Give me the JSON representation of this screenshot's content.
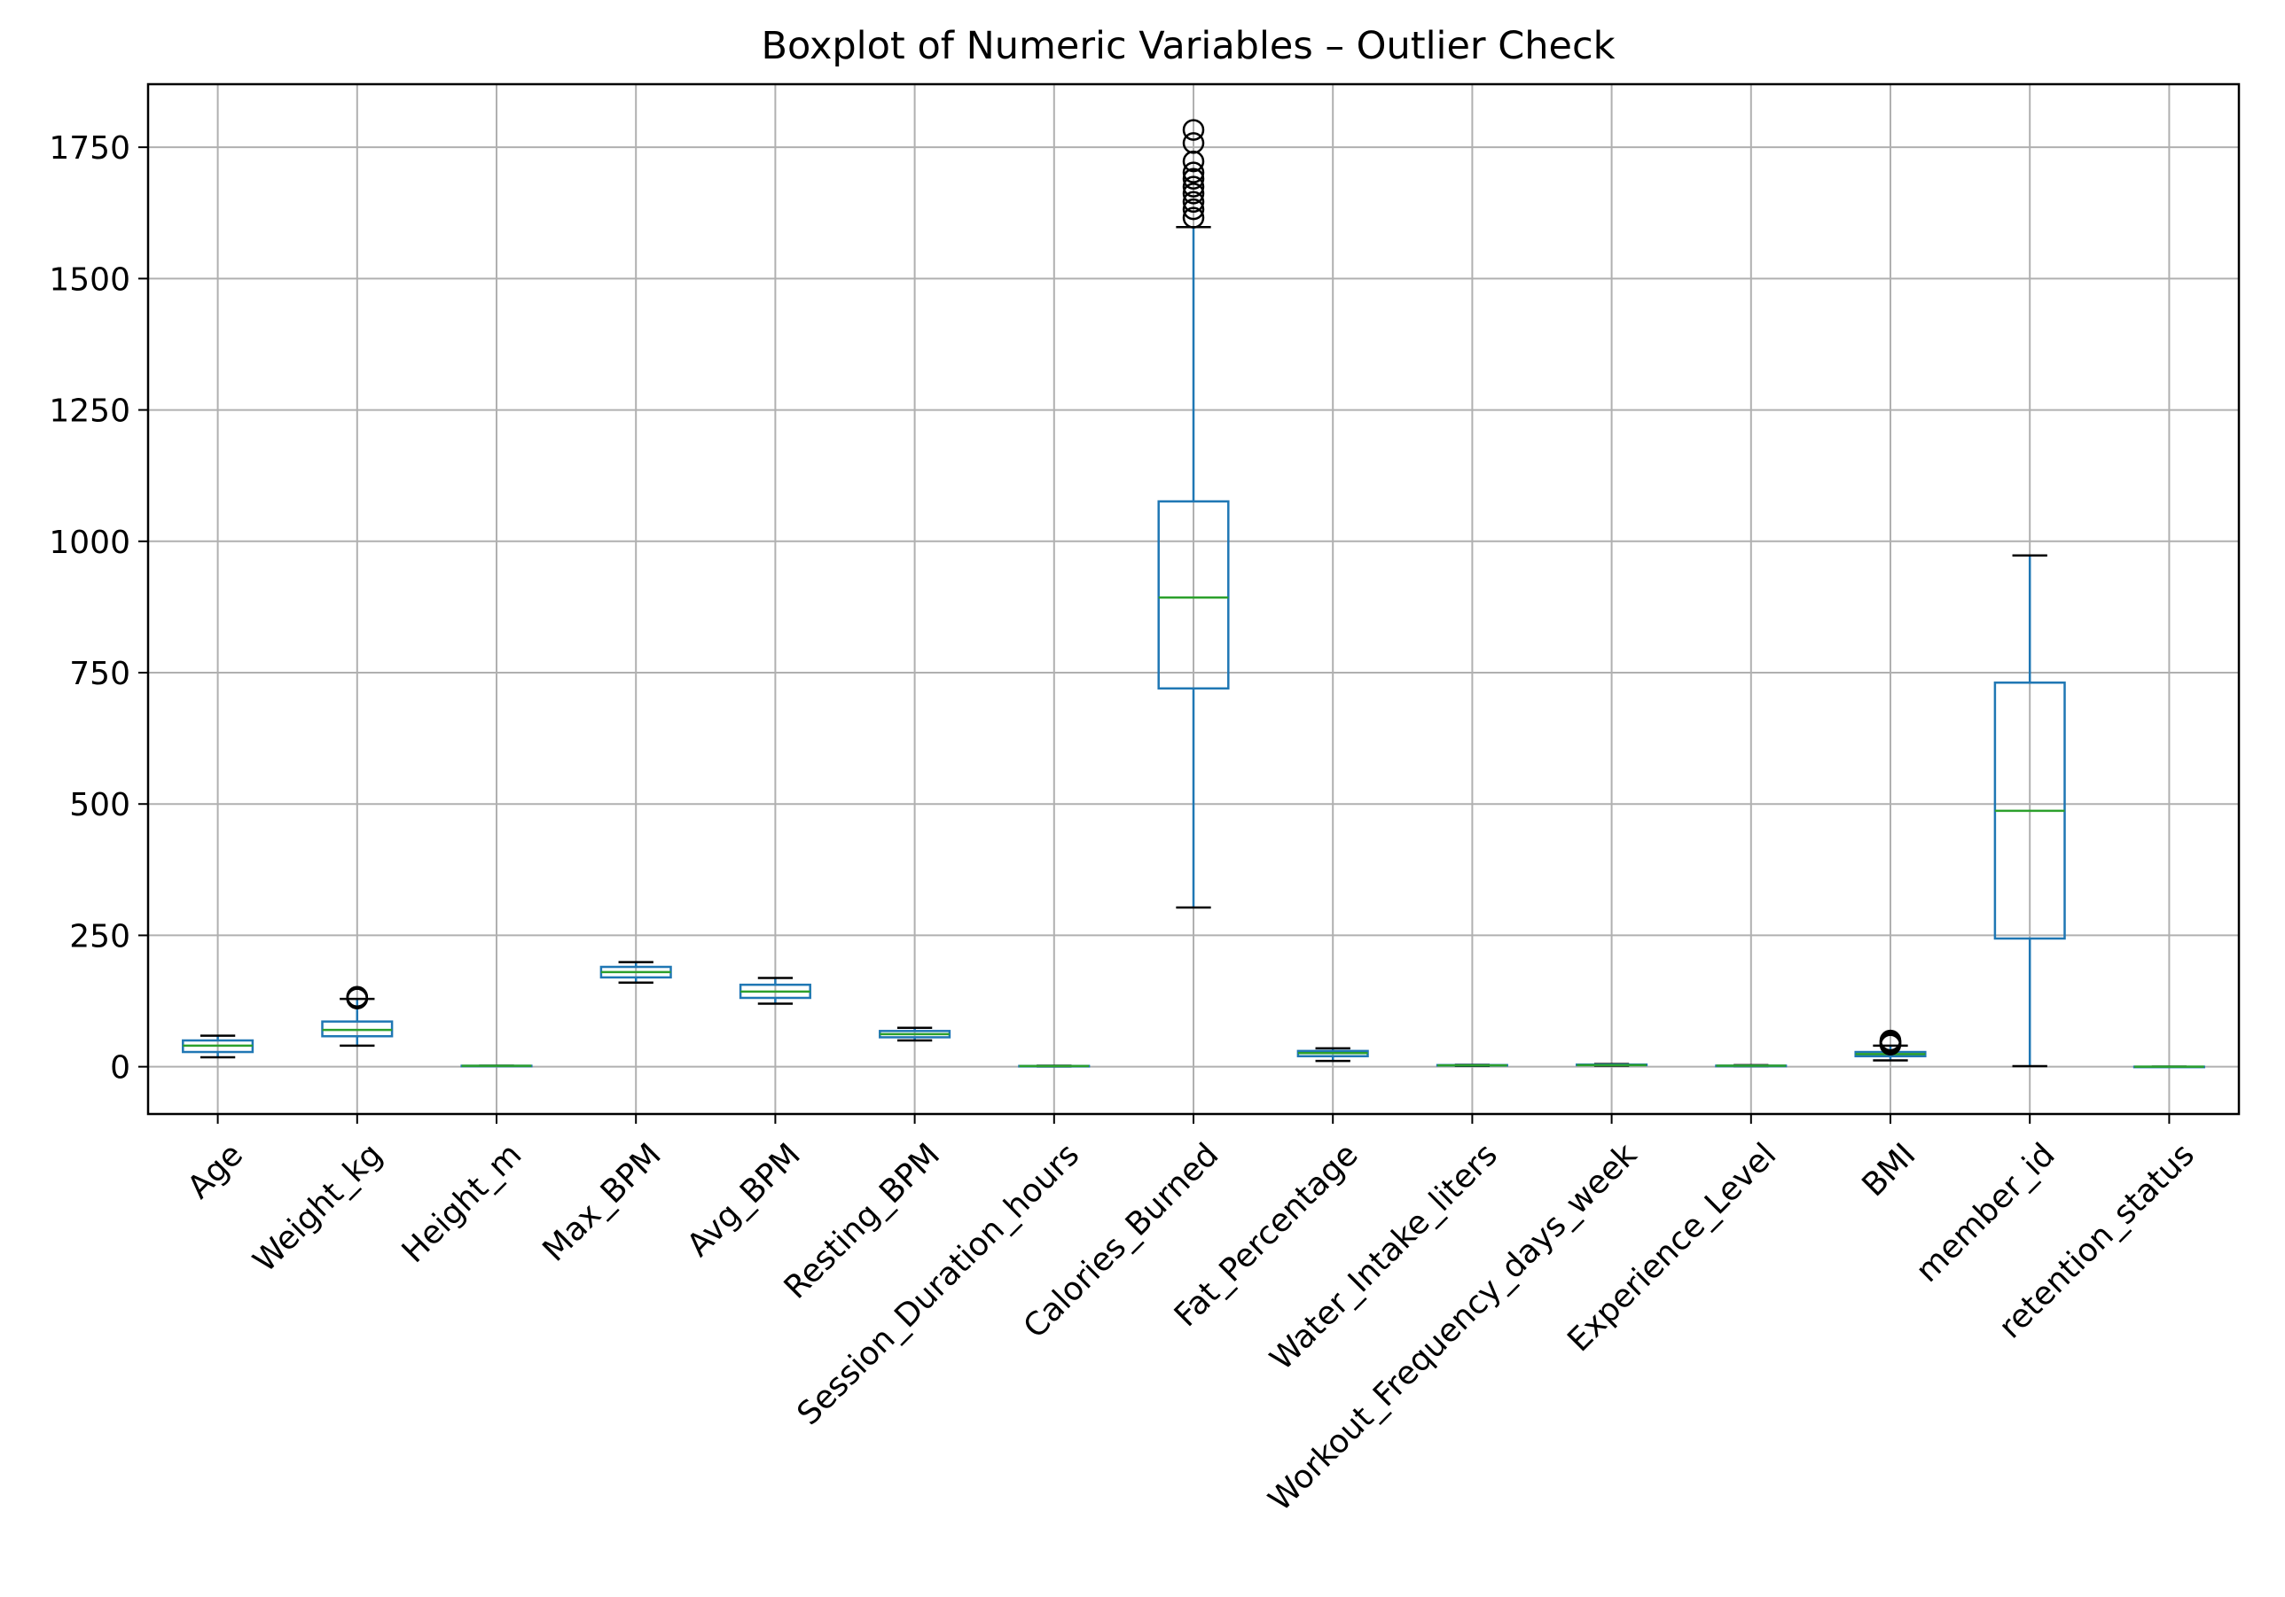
{
  "chart_data": {
    "type": "box",
    "title": "Boxplot of Numeric Variables – Outlier Check",
    "xlabel": "",
    "ylabel": "",
    "ylim": [
      -90,
      1870
    ],
    "yticks": [
      0,
      250,
      500,
      750,
      1000,
      1250,
      1500,
      1750
    ],
    "grid": true,
    "colors": {
      "box": "#1f77b4",
      "median": "#2ca02c",
      "whisker": "#1f77b4",
      "cap": "#000000",
      "flier": "#000000",
      "grid": "#b0b0b0",
      "axes": "#000000"
    },
    "categories": [
      "Age",
      "Weight_kg",
      "Height_m",
      "Max_BPM",
      "Avg_BPM",
      "Resting_BPM",
      "Session_Duration_hours",
      "Calories_Burned",
      "Fat_Percentage",
      "Water_Intake_liters",
      "Workout_Frequency_days_week",
      "Experience_Level",
      "BMI",
      "member_id",
      "retention_status"
    ],
    "boxes": [
      {
        "label": "Age",
        "whislo": 18,
        "q1": 28,
        "med": 40,
        "q3": 50,
        "whishi": 59,
        "fliers": []
      },
      {
        "label": "Weight_kg",
        "whislo": 40,
        "q1": 58,
        "med": 70,
        "q3": 86,
        "whishi": 129,
        "fliers": [
          130,
          131,
          133,
          129.9
        ]
      },
      {
        "label": "Height_m",
        "whislo": 1.5,
        "q1": 1.62,
        "med": 1.71,
        "q3": 1.8,
        "whishi": 2.0,
        "fliers": []
      },
      {
        "label": "Max_BPM",
        "whislo": 160,
        "q1": 170,
        "med": 180,
        "q3": 190,
        "whishi": 199,
        "fliers": []
      },
      {
        "label": "Avg_BPM",
        "whislo": 120,
        "q1": 131,
        "med": 143,
        "q3": 156,
        "whishi": 169,
        "fliers": []
      },
      {
        "label": "Resting_BPM",
        "whislo": 50,
        "q1": 56,
        "med": 62,
        "q3": 68,
        "whishi": 74,
        "fliers": []
      },
      {
        "label": "Session_Duration_hours",
        "whislo": 0.5,
        "q1": 1.04,
        "med": 1.26,
        "q3": 1.46,
        "whishi": 2.0,
        "fliers": []
      },
      {
        "label": "Calories_Burned",
        "whislo": 303,
        "q1": 720,
        "med": 893,
        "q3": 1076,
        "whishi": 1598,
        "fliers": [
          1616,
          1632,
          1646,
          1662,
          1675,
          1690,
          1702,
          1723,
          1758,
          1783
        ]
      },
      {
        "label": "Fat_Percentage",
        "whislo": 11,
        "q1": 20,
        "med": 26,
        "q3": 30,
        "whishi": 35,
        "fliers": []
      },
      {
        "label": "Water_Intake_liters",
        "whislo": 1.5,
        "q1": 2.2,
        "med": 2.6,
        "q3": 3.1,
        "whishi": 3.7,
        "fliers": []
      },
      {
        "label": "Workout_Frequency_days_week",
        "whislo": 2,
        "q1": 3,
        "med": 3,
        "q3": 4,
        "whishi": 5,
        "fliers": []
      },
      {
        "label": "Experience_Level",
        "whislo": 1,
        "q1": 1,
        "med": 2,
        "q3": 2,
        "whishi": 3,
        "fliers": []
      },
      {
        "label": "BMI",
        "whislo": 12,
        "q1": 20,
        "med": 24,
        "q3": 28,
        "whishi": 40,
        "fliers": [
          42,
          44,
          46,
          48,
          49.8
        ]
      },
      {
        "label": "member_id",
        "whislo": 1,
        "q1": 244,
        "med": 487,
        "q3": 731,
        "whishi": 973,
        "fliers": []
      },
      {
        "label": "retention_status",
        "whislo": 0,
        "q1": 0,
        "med": 0,
        "q3": 0,
        "whishi": 0,
        "fliers": []
      }
    ]
  }
}
